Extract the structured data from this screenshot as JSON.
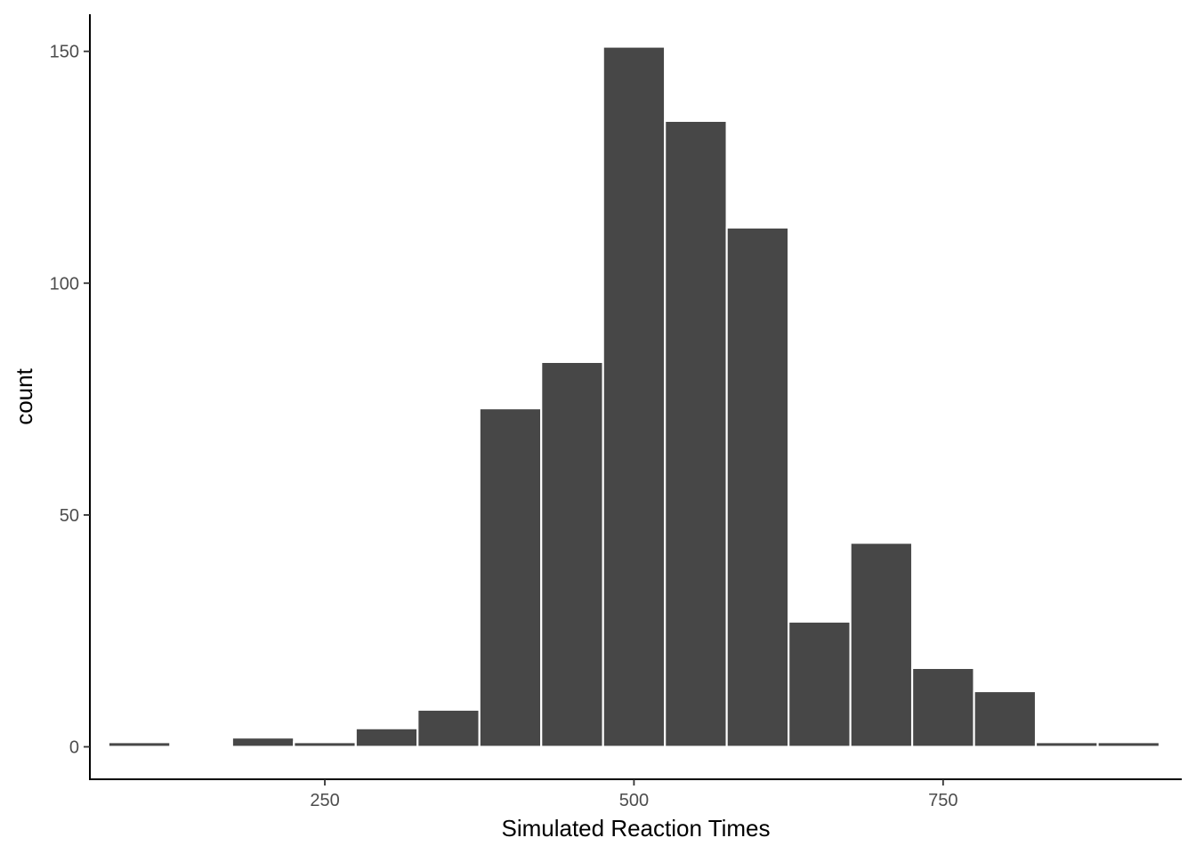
{
  "chart_data": {
    "type": "bar",
    "subtype": "histogram",
    "title": "",
    "xlabel": "Simulated Reaction Times",
    "ylabel": "count",
    "bin_width": 50,
    "bin_centers": [
      100,
      150,
      200,
      250,
      300,
      350,
      400,
      450,
      500,
      550,
      600,
      650,
      700,
      750,
      800,
      850,
      900
    ],
    "values": [
      1,
      0,
      2,
      1,
      4,
      8,
      73,
      83,
      151,
      135,
      112,
      27,
      44,
      17,
      12,
      1,
      1
    ],
    "xlim": [
      60,
      943
    ],
    "ylim": [
      -7,
      158
    ],
    "x_ticks": [
      250,
      500,
      750
    ],
    "y_ticks": [
      0,
      50,
      100,
      150
    ],
    "grid": false,
    "legend": "none",
    "colors": {
      "bar_fill": "#474747",
      "bar_outline": "#ffffff",
      "axis": "#000000",
      "tick_text": "#4d4d4d"
    }
  }
}
